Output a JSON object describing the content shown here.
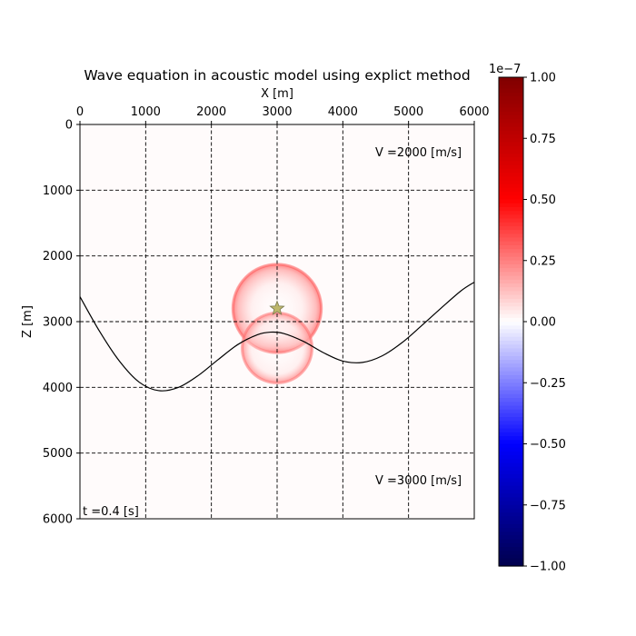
{
  "chart_data": {
    "type": "heatmap",
    "title": "Wave equation in acoustic model using explict method",
    "xlabel": "X [m]",
    "ylabel": "Z [m]",
    "xlim": [
      0,
      6000
    ],
    "ylim": [
      6000,
      0
    ],
    "x_ticks": [
      0,
      1000,
      2000,
      3000,
      4000,
      5000,
      6000
    ],
    "y_ticks": [
      0,
      1000,
      2000,
      3000,
      4000,
      5000,
      6000
    ],
    "x_tick_labels": [
      "0",
      "1000",
      "2000",
      "3000",
      "4000",
      "5000",
      "6000"
    ],
    "y_tick_labels": [
      "0",
      "1000",
      "2000",
      "3000",
      "4000",
      "5000",
      "6000"
    ],
    "x_axis_position": "top",
    "grid": true,
    "grid_style": "dashed",
    "annotations": {
      "upper_velocity": "V =2000 [m/s]",
      "lower_velocity": "V =3000 [m/s]",
      "time": "t =0.4 [s]"
    },
    "source": {
      "x": 3000,
      "z": 2800,
      "marker": "star",
      "color": "#bdb76b"
    },
    "wavefronts": [
      {
        "name": "direct wave",
        "center_x": 3000,
        "center_z": 2800,
        "radius": 700,
        "color": "#ff3030"
      },
      {
        "name": "transmitted/reflected wave",
        "center_x": 3000,
        "center_z": 3400,
        "radius": 560,
        "color": "#ff3030"
      }
    ],
    "interface": {
      "x": [
        0,
        300,
        600,
        900,
        1200,
        1500,
        1800,
        2100,
        2400,
        2700,
        2900,
        3100,
        3400,
        3700,
        4000,
        4300,
        4600,
        4900,
        5200,
        5500,
        5800,
        6000
      ],
      "z": [
        2620,
        3150,
        3600,
        3920,
        4050,
        4000,
        3820,
        3580,
        3350,
        3200,
        3160,
        3180,
        3300,
        3470,
        3600,
        3620,
        3520,
        3320,
        3060,
        2790,
        2530,
        2400
      ]
    },
    "colorbar": {
      "colormap": "seismic",
      "range": [
        -1.0,
        1.0
      ],
      "exponent_label": "1e−7",
      "ticks": [
        1.0,
        0.75,
        0.5,
        0.25,
        0.0,
        -0.25,
        -0.5,
        -0.75,
        -1.0
      ],
      "tick_labels": [
        "1.00",
        "0.75",
        "0.50",
        "0.25",
        "0.00",
        "−0.25",
        "−0.50",
        "−0.75",
        "−1.00"
      ]
    },
    "background_color": "#fffbfb"
  }
}
